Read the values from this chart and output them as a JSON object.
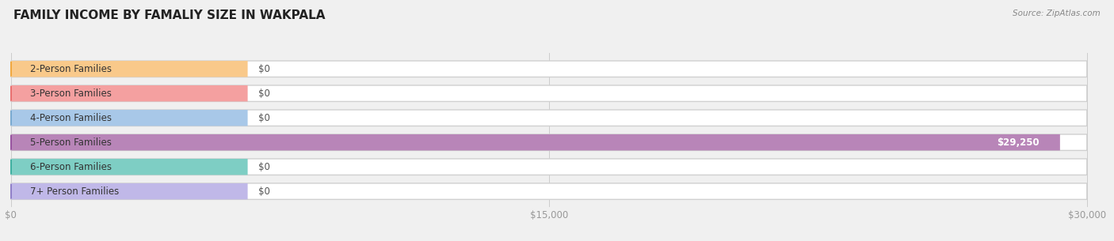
{
  "title": "FAMILY INCOME BY FAMALIY SIZE IN WAKPALA",
  "source": "Source: ZipAtlas.com",
  "categories": [
    "2-Person Families",
    "3-Person Families",
    "4-Person Families",
    "5-Person Families",
    "6-Person Families",
    "7+ Person Families"
  ],
  "values": [
    0,
    0,
    0,
    29250,
    0,
    0
  ],
  "bar_colors": [
    "#f9c98a",
    "#f4a0a0",
    "#a8c8e8",
    "#b885b8",
    "#7ecec4",
    "#c0b8e8"
  ],
  "dot_colors": [
    "#f0a840",
    "#e87070",
    "#7aaad0",
    "#9855a0",
    "#40b0a0",
    "#9080c8"
  ],
  "value_labels": [
    "$0",
    "$0",
    "$0",
    "$29,250",
    "$0",
    "$0"
  ],
  "xlim": [
    0,
    30000
  ],
  "xticks": [
    0,
    15000,
    30000
  ],
  "xticklabels": [
    "$0",
    "$15,000",
    "$30,000"
  ],
  "background_color": "#f0f0f0",
  "bar_bg_color": "#ffffff",
  "bar_outer_color": "#e0e0e0",
  "title_fontsize": 11,
  "bar_height": 0.62,
  "fig_width": 14.06,
  "fig_height": 3.05
}
